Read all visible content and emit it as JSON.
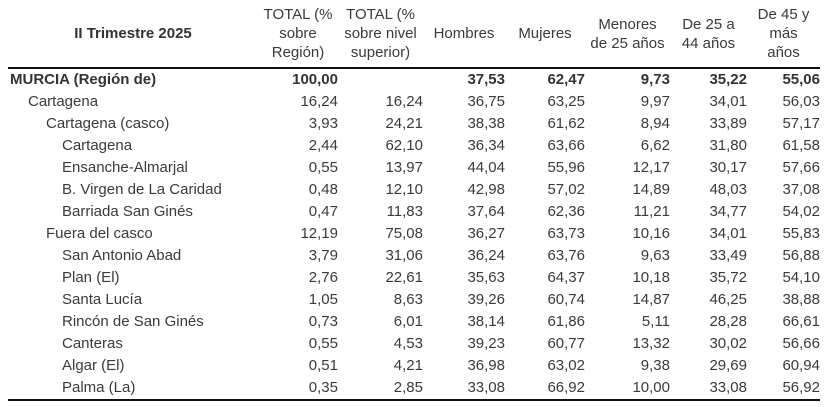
{
  "header": {
    "title": "II Trimestre 2025",
    "cells": [
      "TOTAL (%\nsobre\nRegión)",
      "TOTAL (%\nsobre nivel\nsuperior)",
      "Hombres",
      "Mujeres",
      "Menores\nde 25 años",
      "De 25 a\n44 años",
      "De 45 y\nmás\naños"
    ]
  },
  "chart_data": {
    "type": "table",
    "title": "II Trimestre 2025",
    "columns": [
      "TOTAL (% sobre Región)",
      "TOTAL (% sobre nivel superior)",
      "Hombres",
      "Mujeres",
      "Menores de 25 años",
      "De 25 a 44 años",
      "De 45 y más años"
    ],
    "rows": [
      {
        "label": "MURCIA (Región de)",
        "indent": 0,
        "bold": true,
        "values": [
          "100,00",
          "",
          "37,53",
          "62,47",
          "9,73",
          "35,22",
          "55,06"
        ]
      },
      {
        "label": "Cartagena",
        "indent": 1,
        "bold": false,
        "values": [
          "16,24",
          "16,24",
          "36,75",
          "63,25",
          "9,97",
          "34,01",
          "56,03"
        ]
      },
      {
        "label": "Cartagena (casco)",
        "indent": 2,
        "bold": false,
        "values": [
          "3,93",
          "24,21",
          "38,38",
          "61,62",
          "8,94",
          "33,89",
          "57,17"
        ]
      },
      {
        "label": "Cartagena",
        "indent": 3,
        "bold": false,
        "values": [
          "2,44",
          "62,10",
          "36,34",
          "63,66",
          "6,62",
          "31,80",
          "61,58"
        ]
      },
      {
        "label": "Ensanche-Almarjal",
        "indent": 3,
        "bold": false,
        "values": [
          "0,55",
          "13,97",
          "44,04",
          "55,96",
          "12,17",
          "30,17",
          "57,66"
        ]
      },
      {
        "label": "B. Virgen de La Caridad",
        "indent": 3,
        "bold": false,
        "values": [
          "0,48",
          "12,10",
          "42,98",
          "57,02",
          "14,89",
          "48,03",
          "37,08"
        ]
      },
      {
        "label": "Barriada San Ginés",
        "indent": 3,
        "bold": false,
        "values": [
          "0,47",
          "11,83",
          "37,64",
          "62,36",
          "11,21",
          "34,77",
          "54,02"
        ]
      },
      {
        "label": "Fuera del casco",
        "indent": 2,
        "bold": false,
        "values": [
          "12,19",
          "75,08",
          "36,27",
          "63,73",
          "10,16",
          "34,01",
          "55,83"
        ]
      },
      {
        "label": "San Antonio Abad",
        "indent": 3,
        "bold": false,
        "values": [
          "3,79",
          "31,06",
          "36,24",
          "63,76",
          "9,63",
          "33,49",
          "56,88"
        ]
      },
      {
        "label": "Plan (El)",
        "indent": 3,
        "bold": false,
        "values": [
          "2,76",
          "22,61",
          "35,63",
          "64,37",
          "10,18",
          "35,72",
          "54,10"
        ]
      },
      {
        "label": "Santa Lucía",
        "indent": 3,
        "bold": false,
        "values": [
          "1,05",
          "8,63",
          "39,26",
          "60,74",
          "14,87",
          "46,25",
          "38,88"
        ]
      },
      {
        "label": "Rincón de San Ginés",
        "indent": 3,
        "bold": false,
        "values": [
          "0,73",
          "6,01",
          "38,14",
          "61,86",
          "5,11",
          "28,28",
          "66,61"
        ]
      },
      {
        "label": "Canteras",
        "indent": 3,
        "bold": false,
        "values": [
          "0,55",
          "4,53",
          "39,23",
          "60,77",
          "13,32",
          "30,02",
          "56,66"
        ]
      },
      {
        "label": "Algar (El)",
        "indent": 3,
        "bold": false,
        "values": [
          "0,51",
          "4,21",
          "36,98",
          "63,02",
          "9,38",
          "29,69",
          "60,94"
        ]
      },
      {
        "label": "Palma (La)",
        "indent": 3,
        "bold": false,
        "values": [
          "0,35",
          "2,85",
          "33,08",
          "66,92",
          "10,00",
          "33,08",
          "56,92"
        ]
      }
    ]
  },
  "colors": {
    "text": "#3a3a3a",
    "bold_text": "#333333",
    "border": "#111111",
    "background": "#ffffff"
  }
}
